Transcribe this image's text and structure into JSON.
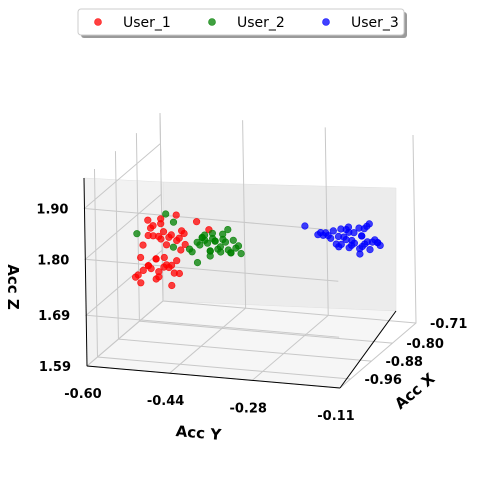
{
  "chart_data": {
    "type": "scatter",
    "projection": "3d",
    "xlabel": "Acc X",
    "ylabel": "Acc Y",
    "zlabel": "Acc Z",
    "x_ticks": [
      "-0.96",
      "-0.88",
      "-0.80",
      "-0.71"
    ],
    "y_ticks": [
      "-0.60",
      "-0.44",
      "-0.28",
      "-0.11"
    ],
    "z_ticks": [
      "1.59",
      "1.69",
      "1.80",
      "1.90"
    ],
    "xlim": [
      -1.0,
      -0.71
    ],
    "ylim": [
      -0.6,
      -0.11
    ],
    "zlim": [
      1.59,
      1.96
    ],
    "grid": true,
    "legend_position": "top-center",
    "series": [
      {
        "name": "User_1",
        "color": "#ff0000",
        "points": [
          {
            "x": -0.82,
            "y": -0.57,
            "z": 1.77
          },
          {
            "x": -0.82,
            "y": -0.55,
            "z": 1.77
          },
          {
            "x": -0.83,
            "y": -0.56,
            "z": 1.79
          },
          {
            "x": -0.84,
            "y": -0.55,
            "z": 1.8
          },
          {
            "x": -0.83,
            "y": -0.54,
            "z": 1.81
          },
          {
            "x": -0.84,
            "y": -0.53,
            "z": 1.79
          },
          {
            "x": -0.83,
            "y": -0.52,
            "z": 1.78
          },
          {
            "x": -0.82,
            "y": -0.53,
            "z": 1.77
          },
          {
            "x": -0.81,
            "y": -0.52,
            "z": 1.76
          },
          {
            "x": -0.82,
            "y": -0.51,
            "z": 1.77
          },
          {
            "x": -0.83,
            "y": -0.5,
            "z": 1.79
          },
          {
            "x": -0.84,
            "y": -0.49,
            "z": 1.79
          },
          {
            "x": -0.81,
            "y": -0.54,
            "z": 1.75
          },
          {
            "x": -0.84,
            "y": -0.56,
            "z": 1.81
          },
          {
            "x": -0.83,
            "y": -0.51,
            "z": 1.82
          },
          {
            "x": -0.85,
            "y": -0.53,
            "z": 1.81
          },
          {
            "x": -0.84,
            "y": -0.57,
            "z": 1.76
          },
          {
            "x": -0.85,
            "y": -0.57,
            "z": 1.74
          },
          {
            "x": -0.86,
            "y": -0.55,
            "z": 1.73
          },
          {
            "x": -0.86,
            "y": -0.56,
            "z": 1.72
          },
          {
            "x": -0.85,
            "y": -0.54,
            "z": 1.74
          },
          {
            "x": -0.86,
            "y": -0.53,
            "z": 1.72
          },
          {
            "x": -0.85,
            "y": -0.52,
            "z": 1.73
          },
          {
            "x": -0.86,
            "y": -0.51,
            "z": 1.73
          },
          {
            "x": -0.85,
            "y": -0.5,
            "z": 1.74
          },
          {
            "x": -0.86,
            "y": -0.49,
            "z": 1.72
          },
          {
            "x": -0.87,
            "y": -0.5,
            "z": 1.7
          },
          {
            "x": -0.86,
            "y": -0.57,
            "z": 1.71
          },
          {
            "x": -0.87,
            "y": -0.56,
            "z": 1.7
          },
          {
            "x": -0.85,
            "y": -0.55,
            "z": 1.72
          },
          {
            "x": -0.86,
            "y": -0.55,
            "z": 1.73
          },
          {
            "x": -0.85,
            "y": -0.54,
            "z": 1.74
          },
          {
            "x": -0.86,
            "y": -0.53,
            "z": 1.71
          },
          {
            "x": -0.87,
            "y": -0.53,
            "z": 1.71
          },
          {
            "x": -0.86,
            "y": -0.52,
            "z": 1.73
          },
          {
            "x": -0.85,
            "y": -0.51,
            "z": 1.73
          },
          {
            "x": -0.86,
            "y": -0.5,
            "z": 1.72
          },
          {
            "x": -0.87,
            "y": -0.57,
            "z": 1.71
          },
          {
            "x": -0.84,
            "y": -0.55,
            "z": 1.78
          },
          {
            "x": -0.85,
            "y": -0.53,
            "z": 1.78
          },
          {
            "x": -0.96,
            "y": -0.38,
            "z": 1.86
          },
          {
            "x": -0.97,
            "y": -0.43,
            "z": 1.82
          },
          {
            "x": -0.87,
            "y": -0.45,
            "z": 1.83
          },
          {
            "x": -0.78,
            "y": -0.56,
            "z": 1.71
          },
          {
            "x": -0.72,
            "y": -0.55,
            "z": 1.71
          }
        ]
      },
      {
        "name": "User_2",
        "color": "#008000",
        "points": [
          {
            "x": -0.83,
            "y": -0.47,
            "z": 1.77
          },
          {
            "x": -0.84,
            "y": -0.46,
            "z": 1.77
          },
          {
            "x": -0.83,
            "y": -0.45,
            "z": 1.77
          },
          {
            "x": -0.84,
            "y": -0.44,
            "z": 1.76
          },
          {
            "x": -0.83,
            "y": -0.43,
            "z": 1.76
          },
          {
            "x": -0.84,
            "y": -0.42,
            "z": 1.77
          },
          {
            "x": -0.83,
            "y": -0.41,
            "z": 1.76
          },
          {
            "x": -0.84,
            "y": -0.4,
            "z": 1.76
          },
          {
            "x": -0.83,
            "y": -0.39,
            "z": 1.77
          },
          {
            "x": -0.84,
            "y": -0.38,
            "z": 1.76
          },
          {
            "x": -0.83,
            "y": -0.46,
            "z": 1.78
          },
          {
            "x": -0.84,
            "y": -0.45,
            "z": 1.78
          },
          {
            "x": -0.83,
            "y": -0.44,
            "z": 1.78
          },
          {
            "x": -0.84,
            "y": -0.43,
            "z": 1.78
          },
          {
            "x": -0.83,
            "y": -0.42,
            "z": 1.78
          },
          {
            "x": -0.84,
            "y": -0.41,
            "z": 1.78
          },
          {
            "x": -0.83,
            "y": -0.4,
            "z": 1.78
          },
          {
            "x": -0.84,
            "y": -0.39,
            "z": 1.77
          },
          {
            "x": -0.85,
            "y": -0.45,
            "z": 1.79
          },
          {
            "x": -0.85,
            "y": -0.43,
            "z": 1.8
          },
          {
            "x": -0.85,
            "y": -0.41,
            "z": 1.8
          },
          {
            "x": -0.85,
            "y": -0.4,
            "z": 1.81
          },
          {
            "x": -0.86,
            "y": -0.44,
            "z": 1.8
          },
          {
            "x": -0.86,
            "y": -0.42,
            "z": 1.79
          },
          {
            "x": -0.82,
            "y": -0.45,
            "z": 1.75
          },
          {
            "x": -0.82,
            "y": -0.43,
            "z": 1.75
          },
          {
            "x": -0.82,
            "y": -0.41,
            "z": 1.75
          },
          {
            "x": -0.85,
            "y": -0.47,
            "z": 1.76
          },
          {
            "x": -0.86,
            "y": -0.5,
            "z": 1.82
          },
          {
            "x": -0.85,
            "y": -0.52,
            "z": 1.83
          },
          {
            "x": -0.84,
            "y": -0.48,
            "z": 1.76
          },
          {
            "x": -0.94,
            "y": -0.53,
            "z": 1.83
          },
          {
            "x": -0.92,
            "y": -0.47,
            "z": 1.8
          },
          {
            "x": -0.84,
            "y": -0.44,
            "z": 1.75
          },
          {
            "x": -0.83,
            "y": -0.47,
            "z": 1.73
          }
        ]
      },
      {
        "name": "User_3",
        "color": "#0000ff",
        "points": [
          {
            "x": -0.89,
            "y": -0.12,
            "z": 1.84
          },
          {
            "x": -0.88,
            "y": -0.13,
            "z": 1.85
          },
          {
            "x": -0.88,
            "y": -0.11,
            "z": 1.86
          },
          {
            "x": -0.87,
            "y": -0.12,
            "z": 1.85
          },
          {
            "x": -0.86,
            "y": -0.13,
            "z": 1.84
          },
          {
            "x": -0.88,
            "y": -0.14,
            "z": 1.84
          },
          {
            "x": -0.88,
            "y": -0.15,
            "z": 1.84
          },
          {
            "x": -0.87,
            "y": -0.16,
            "z": 1.84
          },
          {
            "x": -0.88,
            "y": -0.17,
            "z": 1.83
          },
          {
            "x": -0.89,
            "y": -0.18,
            "z": 1.83
          },
          {
            "x": -0.88,
            "y": -0.19,
            "z": 1.83
          },
          {
            "x": -0.87,
            "y": -0.2,
            "z": 1.83
          },
          {
            "x": -0.86,
            "y": -0.21,
            "z": 1.82
          },
          {
            "x": -0.87,
            "y": -0.15,
            "z": 1.81
          },
          {
            "x": -0.86,
            "y": -0.16,
            "z": 1.8
          },
          {
            "x": -0.86,
            "y": -0.18,
            "z": 1.8
          },
          {
            "x": -0.85,
            "y": -0.19,
            "z": 1.8
          },
          {
            "x": -0.86,
            "y": -0.17,
            "z": 1.82
          },
          {
            "x": -0.87,
            "y": -0.17,
            "z": 1.81
          },
          {
            "x": -0.84,
            "y": -0.13,
            "z": 1.79
          },
          {
            "x": -0.84,
            "y": -0.14,
            "z": 1.8
          },
          {
            "x": -0.84,
            "y": -0.15,
            "z": 1.79
          },
          {
            "x": -0.84,
            "y": -0.16,
            "z": 1.8
          },
          {
            "x": -0.83,
            "y": -0.14,
            "z": 1.8
          },
          {
            "x": -0.83,
            "y": -0.15,
            "z": 1.79
          },
          {
            "x": -0.84,
            "y": -0.11,
            "z": 1.8
          },
          {
            "x": -0.85,
            "y": -0.12,
            "z": 1.81
          },
          {
            "x": -0.83,
            "y": -0.12,
            "z": 1.8
          },
          {
            "x": -0.82,
            "y": -0.16,
            "z": 1.77
          },
          {
            "x": -0.83,
            "y": -0.17,
            "z": 1.8
          },
          {
            "x": -0.89,
            "y": -0.15,
            "z": 1.83
          },
          {
            "x": -0.88,
            "y": -0.21,
            "z": 1.83
          },
          {
            "x": -0.87,
            "y": -0.24,
            "z": 1.84
          },
          {
            "x": -0.85,
            "y": -0.22,
            "z": 1.82
          },
          {
            "x": -0.85,
            "y": -0.11,
            "z": 1.81
          },
          {
            "x": -0.9,
            "y": -0.14,
            "z": 1.86
          },
          {
            "x": -0.89,
            "y": -0.16,
            "z": 1.85
          },
          {
            "x": -0.88,
            "y": -0.18,
            "z": 1.84
          },
          {
            "x": -0.87,
            "y": -0.13,
            "z": 1.83
          },
          {
            "x": -0.86,
            "y": -0.11,
            "z": 1.82
          }
        ]
      }
    ]
  }
}
